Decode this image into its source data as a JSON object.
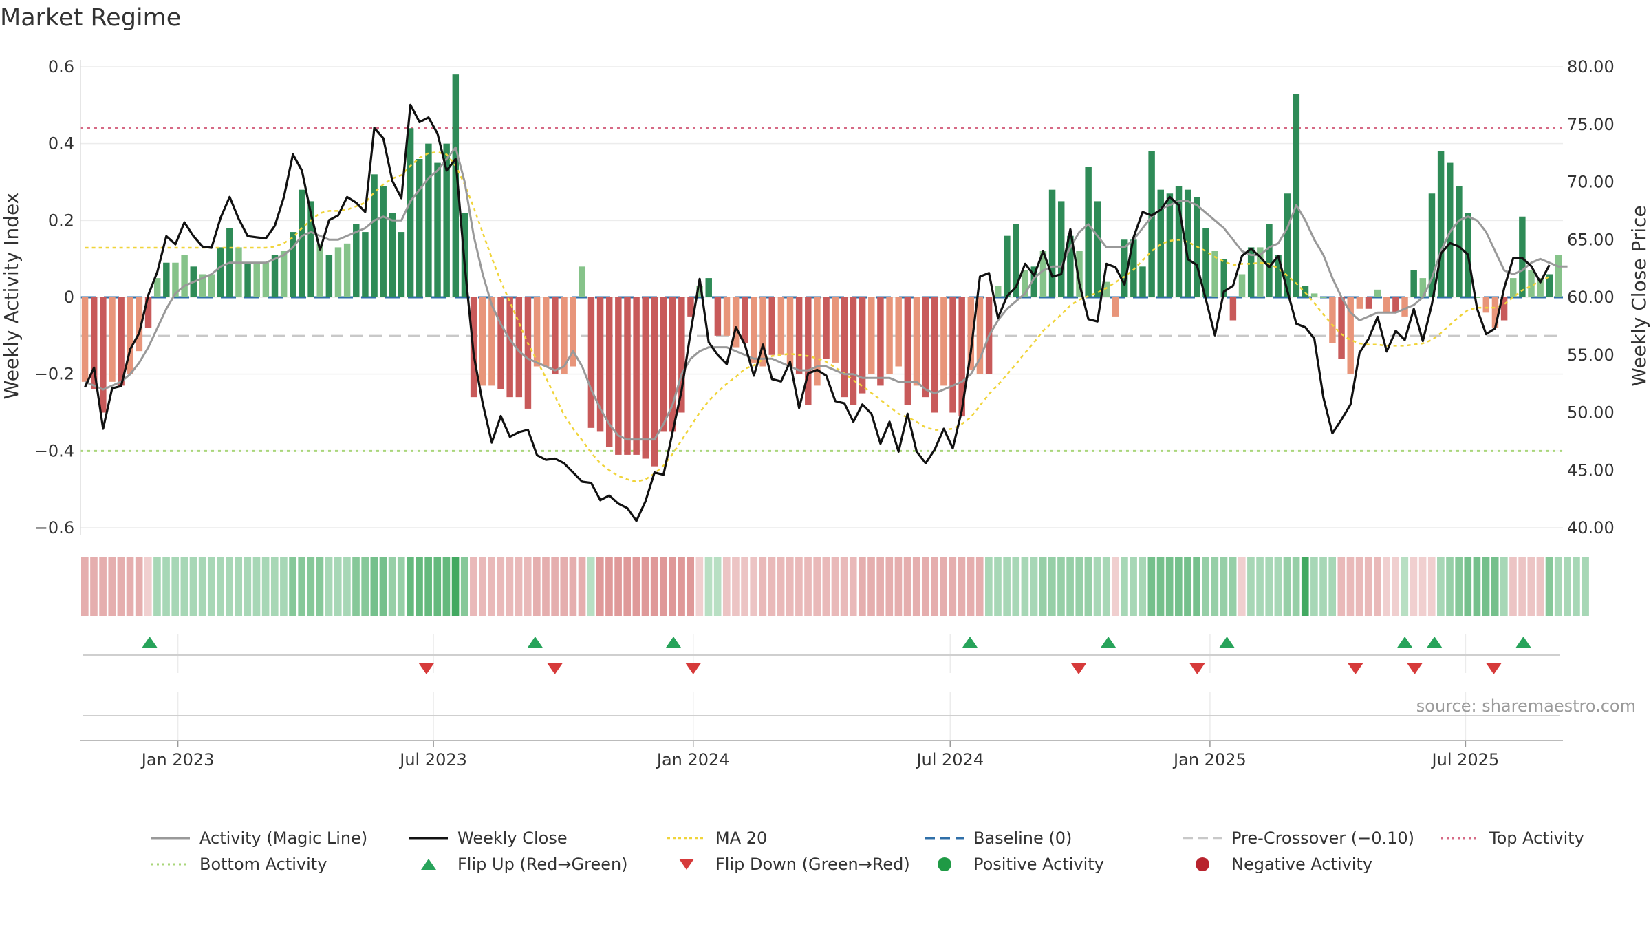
{
  "title": "Market Regime",
  "source": "source: sharemaestro.com",
  "colors": {
    "activity_line": "#999999",
    "close_line": "#111111",
    "ma20": "#f0d43a",
    "baseline": "#2f6fa8",
    "pre_crossover": "#c8c8c8",
    "top_activity": "#d66a85",
    "bottom_activity": "#a9d67a",
    "pos_strong": "#2e8b57",
    "pos_light": "#86c38a",
    "neg_strong": "#c85a5a",
    "neg_light": "#e8957a",
    "flip_up": "#27a35a",
    "flip_down": "#d63a3a",
    "pos_dot": "#1f9a45",
    "neg_dot": "#b8232d"
  },
  "chart_data": {
    "type": "bar",
    "ylabel_left": "Weekly Activity Index",
    "ylabel_right": "Weekly Close Price",
    "ylim_left": [
      -0.6,
      0.6
    ],
    "ylim_right": [
      40,
      80
    ],
    "yticks_left": [
      "0.6",
      "0.4",
      "0.2",
      "0",
      "−0.2",
      "−0.4",
      "−0.6"
    ],
    "yticks_right": [
      "80.00",
      "75.00",
      "70.00",
      "65.00",
      "60.00",
      "55.00",
      "50.00",
      "45.00",
      "40.00"
    ],
    "x_range": [
      "2022-10-24",
      "2025-09-08"
    ],
    "xticks": [
      {
        "date": "2023-01-01",
        "label": "Jan 2023"
      },
      {
        "date": "2023-07-01",
        "label": "Jul 2023"
      },
      {
        "date": "2024-01-01",
        "label": "Jan 2024"
      },
      {
        "date": "2024-07-01",
        "label": "Jul 2024"
      },
      {
        "date": "2025-01-01",
        "label": "Jan 2025"
      },
      {
        "date": "2025-07-01",
        "label": "Jul 2025"
      }
    ],
    "reference_lines": {
      "top_activity": 0.44,
      "bottom_activity": -0.4,
      "pre_crossover": -0.1,
      "baseline": 0
    },
    "activity_bars": [
      -0.22,
      -0.24,
      -0.3,
      -0.22,
      -0.23,
      -0.2,
      -0.14,
      -0.08,
      0.05,
      0.09,
      0.09,
      0.11,
      0.08,
      0.06,
      0.06,
      0.13,
      0.18,
      0.13,
      0.09,
      0.09,
      0.09,
      0.11,
      0.12,
      0.17,
      0.28,
      0.25,
      0.14,
      0.11,
      0.13,
      0.14,
      0.19,
      0.17,
      0.32,
      0.29,
      0.22,
      0.17,
      0.44,
      0.36,
      0.4,
      0.35,
      0.4,
      0.58,
      0.22,
      -0.26,
      -0.23,
      -0.23,
      -0.24,
      -0.26,
      -0.26,
      -0.29,
      -0.18,
      -0.18,
      -0.2,
      -0.2,
      -0.18,
      0.08,
      -0.34,
      -0.35,
      -0.39,
      -0.41,
      -0.41,
      -0.41,
      -0.42,
      -0.44,
      -0.35,
      -0.35,
      -0.3,
      -0.05,
      0.03,
      0.05,
      -0.1,
      -0.1,
      -0.13,
      -0.12,
      -0.17,
      -0.18,
      -0.15,
      -0.15,
      -0.18,
      -0.2,
      -0.28,
      -0.23,
      -0.16,
      -0.17,
      -0.26,
      -0.28,
      -0.25,
      -0.2,
      -0.23,
      -0.2,
      -0.18,
      -0.28,
      -0.23,
      -0.26,
      -0.3,
      -0.23,
      -0.3,
      -0.31,
      -0.19,
      -0.2,
      -0.2,
      0.03,
      0.16,
      0.19,
      0.07,
      0.08,
      0.12,
      0.28,
      0.25,
      0.16,
      0.12,
      0.34,
      0.25,
      0.04,
      -0.05,
      0.15,
      0.15,
      0.08,
      0.38,
      0.28,
      0.27,
      0.29,
      0.28,
      0.26,
      0.18,
      0.12,
      0.1,
      -0.06,
      0.06,
      0.13,
      0.13,
      0.19,
      0.11,
      0.27,
      0.53,
      0.03,
      0.01,
      0.0,
      -0.12,
      -0.16,
      -0.2,
      -0.03,
      -0.03,
      0.02,
      -0.04,
      -0.04,
      -0.05,
      0.07,
      0.05,
      0.27,
      0.38,
      0.35,
      0.29,
      0.22,
      0.0,
      -0.04,
      -0.08,
      -0.06,
      0.05,
      0.21,
      0.07,
      0.05,
      0.06,
      0.11
    ],
    "magic_line": [
      -0.22,
      -0.23,
      -0.24,
      -0.23,
      -0.22,
      -0.2,
      -0.17,
      -0.13,
      -0.08,
      -0.03,
      0.01,
      0.03,
      0.04,
      0.05,
      0.06,
      0.08,
      0.09,
      0.09,
      0.09,
      0.09,
      0.09,
      0.1,
      0.11,
      0.13,
      0.16,
      0.17,
      0.16,
      0.15,
      0.15,
      0.16,
      0.17,
      0.18,
      0.2,
      0.21,
      0.2,
      0.2,
      0.25,
      0.28,
      0.31,
      0.33,
      0.36,
      0.39,
      0.3,
      0.16,
      0.06,
      -0.02,
      -0.07,
      -0.11,
      -0.14,
      -0.16,
      -0.17,
      -0.18,
      -0.19,
      -0.18,
      -0.14,
      -0.18,
      -0.24,
      -0.29,
      -0.33,
      -0.36,
      -0.37,
      -0.37,
      -0.37,
      -0.37,
      -0.33,
      -0.28,
      -0.2,
      -0.16,
      -0.14,
      -0.13,
      -0.13,
      -0.13,
      -0.14,
      -0.15,
      -0.16,
      -0.16,
      -0.16,
      -0.17,
      -0.18,
      -0.19,
      -0.19,
      -0.18,
      -0.18,
      -0.19,
      -0.2,
      -0.2,
      -0.21,
      -0.21,
      -0.21,
      -0.21,
      -0.22,
      -0.22,
      -0.22,
      -0.24,
      -0.25,
      -0.24,
      -0.23,
      -0.22,
      -0.2,
      -0.16,
      -0.1,
      -0.06,
      -0.03,
      -0.01,
      0.01,
      0.05,
      0.07,
      0.08,
      0.08,
      0.13,
      0.17,
      0.19,
      0.16,
      0.13,
      0.13,
      0.13,
      0.15,
      0.18,
      0.21,
      0.23,
      0.24,
      0.25,
      0.25,
      0.24,
      0.22,
      0.2,
      0.18,
      0.15,
      0.12,
      0.11,
      0.11,
      0.13,
      0.14,
      0.18,
      0.24,
      0.2,
      0.15,
      0.11,
      0.05,
      0.0,
      -0.04,
      -0.06,
      -0.05,
      -0.04,
      -0.04,
      -0.04,
      -0.03,
      -0.02,
      0.0,
      0.05,
      0.12,
      0.17,
      0.2,
      0.21,
      0.2,
      0.17,
      0.12,
      0.07,
      0.06,
      0.07,
      0.09,
      0.1,
      0.09,
      0.08,
      0.08
    ],
    "weekly_close": [
      52.2,
      53.9,
      48.6,
      52.1,
      52.3,
      55.5,
      56.9,
      60.2,
      62.2,
      65.3,
      64.6,
      66.5,
      65.3,
      64.4,
      64.3,
      66.9,
      68.7,
      66.8,
      65.3,
      65.2,
      65.1,
      66.2,
      68.7,
      72.4,
      71.0,
      67.2,
      64.1,
      66.7,
      67.1,
      68.7,
      68.2,
      67.4,
      74.7,
      73.8,
      70.1,
      68.6,
      76.7,
      75.2,
      75.6,
      74.2,
      71.0,
      72.0,
      62.8,
      55.0,
      50.8,
      47.4,
      49.7,
      47.9,
      48.3,
      48.5,
      46.3,
      45.9,
      46.0,
      45.6,
      44.8,
      44.0,
      43.9,
      42.4,
      42.8,
      42.1,
      41.7,
      40.6,
      42.3,
      44.8,
      44.6,
      48.3,
      51.9,
      57.0,
      61.6,
      56.1,
      55.0,
      54.2,
      57.4,
      55.9,
      53.2,
      55.9,
      52.9,
      52.7,
      54.4,
      50.4,
      53.4,
      53.7,
      53.2,
      51.0,
      50.8,
      49.2,
      50.7,
      49.9,
      47.3,
      49.2,
      46.6,
      49.9,
      46.6,
      45.6,
      46.8,
      48.6,
      46.9,
      50.2,
      55.3,
      61.8,
      62.1,
      58.2,
      60.1,
      60.9,
      62.9,
      61.9,
      64.0,
      61.8,
      62.0,
      65.9,
      61.2,
      58.1,
      57.9,
      62.9,
      62.6,
      61.1,
      65.2,
      67.4,
      67.1,
      67.6,
      68.7,
      68.0,
      63.3,
      62.8,
      59.8,
      56.7,
      60.5,
      61.0,
      63.6,
      64.2,
      63.5,
      62.6,
      63.6,
      60.6,
      57.7,
      57.4,
      56.4,
      51.3,
      48.2,
      49.4,
      50.7,
      55.2,
      56.4,
      58.3,
      55.3,
      57.1,
      56.3,
      59.0,
      56.2,
      59.4,
      63.8,
      64.7,
      64.4,
      63.7,
      59.0,
      56.8,
      57.3,
      60.8,
      63.4,
      63.4,
      62.7,
      61.3,
      62.8
    ],
    "ma20": [
      64.3,
      64.3,
      64.3,
      64.3,
      64.3,
      64.3,
      64.3,
      64.3,
      64.3,
      64.3,
      64.3,
      64.3,
      64.3,
      64.3,
      64.3,
      64.3,
      64.3,
      64.3,
      64.3,
      64.3,
      64.3,
      64.4,
      64.7,
      65.2,
      66.0,
      66.7,
      67.3,
      67.5,
      67.5,
      67.6,
      67.9,
      68.2,
      69.1,
      69.8,
      70.3,
      70.6,
      71.4,
      72.1,
      72.5,
      72.6,
      72.4,
      71.4,
      69.8,
      67.8,
      65.6,
      63.4,
      61.4,
      59.6,
      57.8,
      56.0,
      54.5,
      53.0,
      51.4,
      49.8,
      48.6,
      47.6,
      46.5,
      45.6,
      45.0,
      44.5,
      44.2,
      44.0,
      44.2,
      44.7,
      45.4,
      46.4,
      47.6,
      48.8,
      50.0,
      51.0,
      51.8,
      52.5,
      53.1,
      53.8,
      54.1,
      54.6,
      54.9,
      55.0,
      55.1,
      55.0,
      54.9,
      54.7,
      54.4,
      53.9,
      53.4,
      52.8,
      52.3,
      51.7,
      51.1,
      50.5,
      49.9,
      49.6,
      49.2,
      48.7,
      48.5,
      48.5,
      48.6,
      49.0,
      49.6,
      50.6,
      51.6,
      52.4,
      53.3,
      54.2,
      55.2,
      56.1,
      57.1,
      57.8,
      58.5,
      59.3,
      59.8,
      60.1,
      60.4,
      60.8,
      61.3,
      61.8,
      62.4,
      63.2,
      64.0,
      64.6,
      64.9,
      65.0,
      64.8,
      64.4,
      64.0,
      63.5,
      63.1,
      62.8,
      62.9,
      62.9,
      63.0,
      62.9,
      62.5,
      61.9,
      61.2,
      60.4,
      59.5,
      58.5,
      57.6,
      56.8,
      56.3,
      56.0,
      55.9,
      55.9,
      55.8,
      55.8,
      55.8,
      55.9,
      56.0,
      56.3,
      56.9,
      57.6,
      58.3,
      58.9,
      59.1,
      59.1,
      59.1,
      59.4,
      60.0,
      60.6,
      61.0,
      61.4,
      61.8
    ],
    "regime_strip": [
      -0.5,
      -0.5,
      -0.5,
      -0.5,
      -0.5,
      -0.5,
      -0.5,
      -0.2,
      0.3,
      0.3,
      0.3,
      0.3,
      0.3,
      0.3,
      0.3,
      0.3,
      0.3,
      0.3,
      0.3,
      0.3,
      0.3,
      0.3,
      0.3,
      0.5,
      0.5,
      0.5,
      0.5,
      0.3,
      0.3,
      0.3,
      0.5,
      0.5,
      0.6,
      0.6,
      0.4,
      0.4,
      0.7,
      0.7,
      0.7,
      0.7,
      0.7,
      0.9,
      0.5,
      -0.4,
      -0.4,
      -0.4,
      -0.4,
      -0.4,
      -0.4,
      -0.4,
      -0.5,
      -0.5,
      -0.5,
      -0.5,
      -0.5,
      -0.5,
      0.2,
      -0.7,
      -0.7,
      -0.7,
      -0.7,
      -0.7,
      -0.7,
      -0.7,
      -0.7,
      -0.7,
      -0.7,
      -0.7,
      -0.2,
      0.2,
      0.2,
      -0.3,
      -0.3,
      -0.3,
      -0.3,
      -0.4,
      -0.4,
      -0.4,
      -0.4,
      -0.4,
      -0.4,
      -0.4,
      -0.4,
      -0.4,
      -0.4,
      -0.4,
      -0.5,
      -0.5,
      -0.5,
      -0.5,
      -0.5,
      -0.5,
      -0.5,
      -0.5,
      -0.5,
      -0.5,
      -0.5,
      -0.5,
      -0.5,
      -0.5,
      0.3,
      0.3,
      0.3,
      0.3,
      0.3,
      0.3,
      0.4,
      0.4,
      0.4,
      0.4,
      0.4,
      0.4,
      0.3,
      0.3,
      -0.2,
      0.3,
      0.3,
      0.3,
      0.6,
      0.6,
      0.6,
      0.6,
      0.6,
      0.6,
      0.4,
      0.4,
      0.4,
      0.4,
      -0.2,
      0.3,
      0.3,
      0.3,
      0.3,
      0.4,
      0.4,
      0.9,
      0.3,
      0.3,
      0.3,
      -0.4,
      -0.4,
      -0.4,
      -0.4,
      -0.4,
      -0.2,
      -0.2,
      0.2,
      -0.2,
      -0.2,
      -0.2,
      0.3,
      0.4,
      0.5,
      0.6,
      0.6,
      0.6,
      0.6,
      0.3,
      -0.3,
      -0.3,
      -0.3,
      -0.3,
      0.5,
      0.3,
      0.3,
      0.3,
      0.3
    ],
    "flip_up_dates": [
      "2022-12-12",
      "2023-09-11",
      "2023-12-18",
      "2024-07-15",
      "2024-10-21",
      "2025-01-13",
      "2025-05-19",
      "2025-06-09",
      "2025-08-11"
    ],
    "flip_down_dates": [
      "2023-06-26",
      "2023-09-25",
      "2024-01-01",
      "2024-09-30",
      "2024-12-23",
      "2025-04-14",
      "2025-05-26",
      "2025-07-21"
    ],
    "legend": [
      {
        "key": "activity_line",
        "label": "Activity (Magic Line)"
      },
      {
        "key": "close_line",
        "label": "Weekly Close"
      },
      {
        "key": "ma20",
        "label": "MA 20"
      },
      {
        "key": "baseline",
        "label": "Baseline (0)"
      },
      {
        "key": "pre_crossover",
        "label": "Pre-Crossover (−0.10)"
      },
      {
        "key": "top_activity",
        "label": "Top Activity"
      },
      {
        "key": "bottom_activity",
        "label": "Bottom Activity"
      },
      {
        "key": "flip_up",
        "label": "Flip Up (Red→Green)"
      },
      {
        "key": "flip_down",
        "label": "Flip Down (Green→Red)"
      },
      {
        "key": "pos_dot",
        "label": "Positive Activity"
      },
      {
        "key": "neg_dot",
        "label": "Negative Activity"
      }
    ]
  }
}
